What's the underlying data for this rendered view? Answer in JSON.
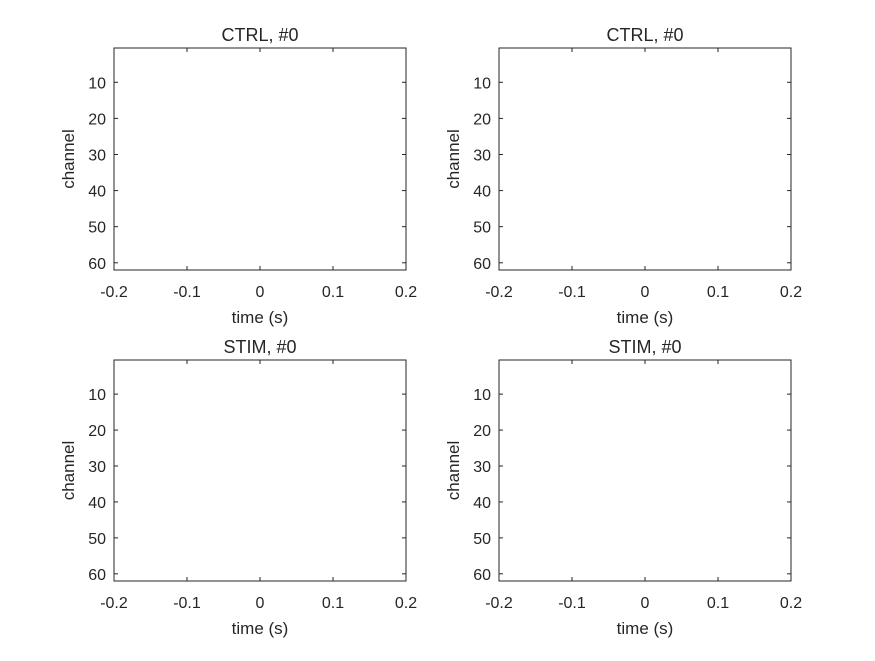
{
  "chart_data": [
    {
      "type": "heatmap",
      "title": "CTRL, #0",
      "xlabel": "time (s)",
      "ylabel": "channel",
      "xlim": [
        -0.2,
        0.2
      ],
      "ylim": [
        62,
        0.5
      ],
      "y_reversed": true,
      "xticks": [
        "-0.2",
        "-0.1",
        "0",
        "0.1",
        "0.2"
      ],
      "yticks": [
        "10",
        "20",
        "30",
        "40",
        "50",
        "60"
      ],
      "values": []
    },
    {
      "type": "heatmap",
      "title": "CTRL, #0",
      "xlabel": "time (s)",
      "ylabel": "channel",
      "xlim": [
        -0.2,
        0.2
      ],
      "ylim": [
        62,
        0.5
      ],
      "y_reversed": true,
      "xticks": [
        "-0.2",
        "-0.1",
        "0",
        "0.1",
        "0.2"
      ],
      "yticks": [
        "10",
        "20",
        "30",
        "40",
        "50",
        "60"
      ],
      "values": []
    },
    {
      "type": "heatmap",
      "title": "STIM, #0",
      "xlabel": "time (s)",
      "ylabel": "channel",
      "xlim": [
        -0.2,
        0.2
      ],
      "ylim": [
        62,
        0.5
      ],
      "y_reversed": true,
      "xticks": [
        "-0.2",
        "-0.1",
        "0",
        "0.1",
        "0.2"
      ],
      "yticks": [
        "10",
        "20",
        "30",
        "40",
        "50",
        "60"
      ],
      "values": []
    },
    {
      "type": "heatmap",
      "title": "STIM, #0",
      "xlabel": "time (s)",
      "ylabel": "channel",
      "xlim": [
        -0.2,
        0.2
      ],
      "ylim": [
        62,
        0.5
      ],
      "y_reversed": true,
      "xticks": [
        "-0.2",
        "-0.1",
        "0",
        "0.1",
        "0.2"
      ],
      "yticks": [
        "10",
        "20",
        "30",
        "40",
        "50",
        "60"
      ],
      "values": []
    }
  ],
  "colors": {
    "axis": "#262626",
    "background": "#ffffff"
  }
}
